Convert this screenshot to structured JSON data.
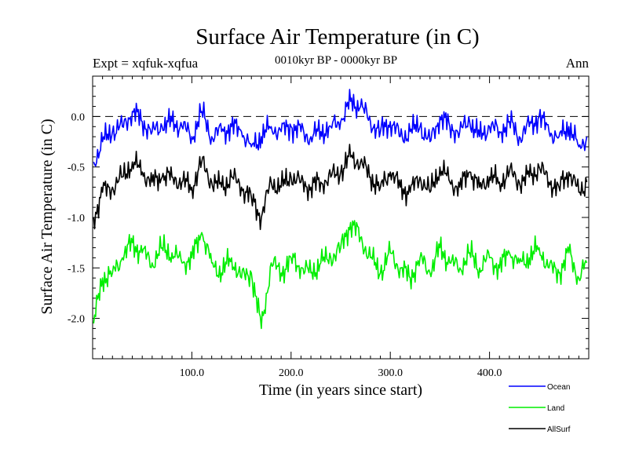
{
  "chart_data": {
    "type": "line",
    "title": "Surface Air Temperature (in C)",
    "subtitle": "0010kyr BP - 0000kyr BP",
    "experiment_label": "Expt = xqfuk-xqfua",
    "season_label": "Ann",
    "xlabel": "Time (in years since start)",
    "ylabel": "Surface Air Temperature (in C)",
    "xlim": [
      0,
      500
    ],
    "ylim": [
      -2.4,
      0.4
    ],
    "xticks": [
      100,
      200,
      300,
      400
    ],
    "xtick_labels": [
      "100.0",
      "200.0",
      "300.0",
      "400.0"
    ],
    "yticks": [
      0.0,
      -0.5,
      -1.0,
      -1.5,
      -2.0
    ],
    "ytick_labels": [
      "0.0",
      "-0.5",
      "-1.0",
      "-1.5",
      "-2.0"
    ],
    "reference_line": 0.0,
    "series": [
      {
        "name": "Ocean",
        "color": "#0000ff",
        "x": [
          1,
          10,
          20,
          30,
          40,
          50,
          60,
          70,
          80,
          90,
          100,
          110,
          120,
          130,
          140,
          150,
          160,
          170,
          180,
          190,
          200,
          210,
          220,
          230,
          240,
          250,
          260,
          270,
          280,
          290,
          300,
          310,
          320,
          330,
          340,
          350,
          360,
          370,
          380,
          390,
          400,
          410,
          420,
          430,
          440,
          450,
          460,
          470,
          480,
          490,
          498
        ],
        "values": [
          -0.45,
          -0.25,
          -0.15,
          -0.1,
          0.05,
          -0.05,
          -0.15,
          -0.1,
          -0.05,
          -0.1,
          -0.2,
          0.05,
          -0.2,
          -0.15,
          -0.1,
          -0.15,
          -0.3,
          -0.2,
          -0.1,
          -0.15,
          -0.1,
          -0.15,
          -0.2,
          -0.15,
          -0.1,
          -0.05,
          0.15,
          0.1,
          -0.05,
          -0.15,
          -0.05,
          -0.2,
          -0.15,
          -0.1,
          -0.25,
          0.0,
          -0.1,
          -0.15,
          -0.05,
          -0.2,
          -0.1,
          -0.15,
          -0.05,
          -0.2,
          -0.1,
          0.0,
          -0.15,
          -0.2,
          -0.1,
          -0.3,
          -0.2
        ]
      },
      {
        "name": "Land",
        "color": "#00ee00",
        "x": [
          1,
          10,
          20,
          30,
          40,
          50,
          60,
          70,
          80,
          90,
          100,
          110,
          120,
          130,
          140,
          150,
          160,
          170,
          180,
          190,
          200,
          210,
          220,
          230,
          240,
          250,
          260,
          270,
          280,
          290,
          300,
          310,
          320,
          330,
          340,
          350,
          360,
          370,
          380,
          390,
          400,
          410,
          420,
          430,
          440,
          450,
          460,
          470,
          480,
          490,
          498
        ],
        "values": [
          -2.05,
          -1.6,
          -1.55,
          -1.4,
          -1.25,
          -1.35,
          -1.45,
          -1.3,
          -1.35,
          -1.45,
          -1.4,
          -1.15,
          -1.45,
          -1.55,
          -1.4,
          -1.6,
          -1.55,
          -2.1,
          -1.45,
          -1.55,
          -1.4,
          -1.5,
          -1.55,
          -1.45,
          -1.4,
          -1.3,
          -1.05,
          -1.2,
          -1.4,
          -1.55,
          -1.35,
          -1.5,
          -1.6,
          -1.4,
          -1.55,
          -1.3,
          -1.45,
          -1.5,
          -1.35,
          -1.5,
          -1.4,
          -1.5,
          -1.35,
          -1.45,
          -1.4,
          -1.3,
          -1.5,
          -1.55,
          -1.35,
          -1.6,
          -1.45
        ]
      },
      {
        "name": "AllSurf",
        "color": "#000000",
        "x": [
          1,
          10,
          20,
          30,
          40,
          50,
          60,
          70,
          80,
          90,
          100,
          110,
          120,
          130,
          140,
          150,
          160,
          170,
          180,
          190,
          200,
          210,
          220,
          230,
          240,
          250,
          260,
          270,
          280,
          290,
          300,
          310,
          320,
          330,
          340,
          350,
          360,
          370,
          380,
          390,
          400,
          410,
          420,
          430,
          440,
          450,
          460,
          470,
          480,
          490,
          498
        ],
        "values": [
          -1.0,
          -0.75,
          -0.7,
          -0.6,
          -0.45,
          -0.55,
          -0.65,
          -0.6,
          -0.6,
          -0.65,
          -0.7,
          -0.45,
          -0.65,
          -0.7,
          -0.6,
          -0.7,
          -0.8,
          -1.0,
          -0.65,
          -0.7,
          -0.6,
          -0.65,
          -0.7,
          -0.65,
          -0.6,
          -0.55,
          -0.4,
          -0.45,
          -0.6,
          -0.7,
          -0.55,
          -0.7,
          -0.75,
          -0.6,
          -0.75,
          -0.5,
          -0.65,
          -0.7,
          -0.55,
          -0.7,
          -0.6,
          -0.65,
          -0.55,
          -0.65,
          -0.6,
          -0.5,
          -0.65,
          -0.7,
          -0.55,
          -0.75,
          -0.65
        ]
      }
    ]
  }
}
